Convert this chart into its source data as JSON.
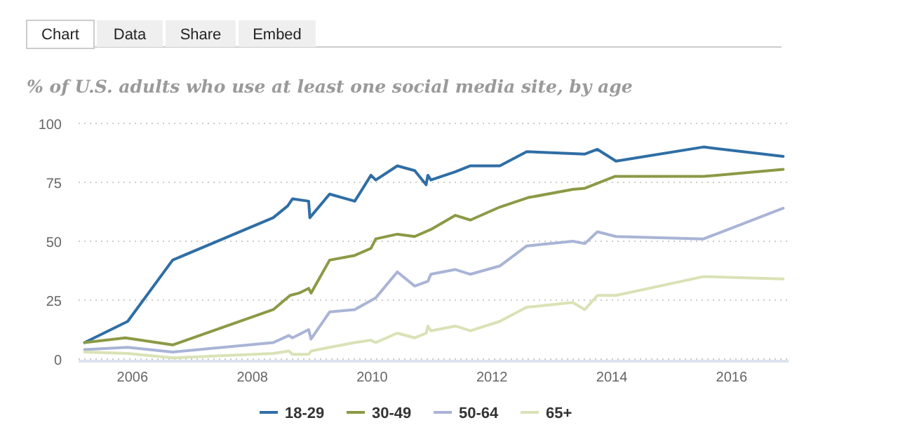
{
  "chart_data": {
    "type": "line",
    "title": "% of U.S. adults who use at least one social media site, by age",
    "annotations": [
      "Chart",
      "Data",
      "Share",
      "Embed"
    ],
    "xlim": [
      2005.1,
      2016.95
    ],
    "xticks": [
      2006,
      2008,
      2010,
      2012,
      2014,
      2016
    ],
    "ylim": [
      0,
      100
    ],
    "yticks": [
      0,
      25,
      50,
      75,
      100
    ],
    "grid": "y",
    "legend": "bottom",
    "marker": "none",
    "line_style": "solid",
    "series": [
      {
        "name": "18-29",
        "color": "#2f6ea5",
        "x": [
          2005.2,
          2005.92,
          2006.67,
          2008.35,
          2008.59,
          2008.67,
          2008.94,
          2008.96,
          2009.29,
          2009.71,
          2009.98,
          2010.06,
          2010.42,
          2010.71,
          2010.9,
          2010.93,
          2010.98,
          2011.39,
          2011.64,
          2012.13,
          2012.58,
          2013.55,
          2013.76,
          2014.07,
          2015.53,
          2016.86
        ],
        "values": [
          7,
          16,
          42,
          60,
          65,
          68,
          67,
          60,
          70,
          67,
          78,
          76,
          82,
          80,
          74,
          78,
          76,
          79.5,
          82,
          82,
          88,
          87,
          89,
          84,
          90,
          86
        ]
      },
      {
        "name": "30-49",
        "color": "#8b9a45",
        "x": [
          2005.2,
          2005.88,
          2006.67,
          2008.35,
          2008.63,
          2008.78,
          2008.94,
          2008.98,
          2009.29,
          2009.71,
          2009.98,
          2010.06,
          2010.42,
          2010.71,
          2010.98,
          2011.39,
          2011.64,
          2012.13,
          2012.6,
          2013.35,
          2013.55,
          2014.05,
          2015.53,
          2016.86
        ],
        "values": [
          7,
          9,
          6,
          21,
          27,
          28,
          30,
          28,
          42,
          44,
          47,
          51,
          53,
          52,
          55,
          61,
          59,
          64.5,
          68.5,
          72,
          72.5,
          77.5,
          77.5,
          80.5
        ]
      },
      {
        "name": "50-64",
        "color": "#a9b4d6",
        "x": [
          2005.2,
          2005.92,
          2006.67,
          2008.35,
          2008.61,
          2008.67,
          2008.94,
          2008.98,
          2009.29,
          2009.71,
          2010.06,
          2010.42,
          2010.71,
          2010.93,
          2010.98,
          2011.39,
          2011.64,
          2012.13,
          2012.58,
          2013.35,
          2013.55,
          2013.76,
          2014.07,
          2015.53,
          2016.86
        ],
        "values": [
          4,
          5,
          3,
          7,
          10,
          9,
          12.5,
          8.5,
          20,
          21,
          26,
          37,
          31,
          33,
          36,
          38,
          36,
          39.5,
          48,
          50,
          49,
          54,
          52,
          51,
          64
        ]
      },
      {
        "name": "65+",
        "color": "#d9e2b5",
        "x": [
          2005.2,
          2005.92,
          2006.67,
          2008.35,
          2008.61,
          2008.67,
          2008.94,
          2008.98,
          2009.29,
          2009.71,
          2009.98,
          2010.06,
          2010.42,
          2010.71,
          2010.9,
          2010.93,
          2010.98,
          2011.39,
          2011.64,
          2012.13,
          2012.58,
          2013.35,
          2013.55,
          2013.76,
          2014.07,
          2015.53,
          2016.86
        ],
        "values": [
          3,
          2.4,
          0.5,
          2.4,
          3.4,
          2,
          2,
          3.4,
          5,
          7,
          8,
          7,
          11,
          9,
          11,
          14,
          12,
          14,
          12,
          16,
          22,
          24,
          21,
          27,
          27,
          35,
          34
        ]
      }
    ]
  }
}
